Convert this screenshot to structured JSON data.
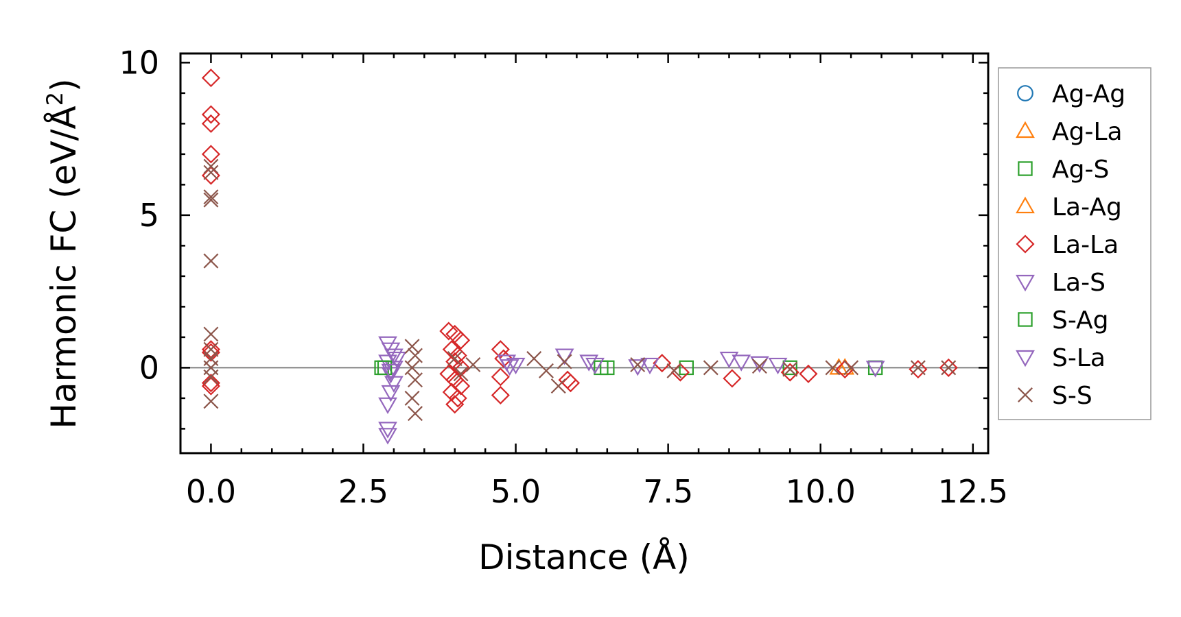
{
  "chart_data": {
    "type": "scatter",
    "xlabel": "Distance (Å)",
    "ylabel": "Harmonic FC (eV/Å²)",
    "ylabel_main": "Harmonic FC (eV/Å",
    "ylabel_sup": "2",
    "ylabel_close": ")",
    "xlim": [
      -0.5,
      12.75
    ],
    "ylim": [
      -2.8,
      10.3
    ],
    "xticks": [
      0.0,
      2.5,
      5.0,
      7.5,
      10.0,
      12.5
    ],
    "xtick_labels": [
      "0.0",
      "2.5",
      "5.0",
      "7.5",
      "10.0",
      "12.5"
    ],
    "yticks": [
      0,
      5,
      10
    ],
    "ytick_labels": [
      "0",
      "5",
      "10"
    ],
    "zero_line": true,
    "legend_position": "right, outside plot",
    "series": [
      {
        "name": "Ag-Ag",
        "marker": "circle",
        "color": "#1f77b4",
        "points": []
      },
      {
        "name": "Ag-La",
        "marker": "triangle-up",
        "color": "#ff7f0e",
        "points": [
          [
            10.3,
            0.0
          ]
        ]
      },
      {
        "name": "Ag-S",
        "marker": "square",
        "color": "#2ca02c",
        "points": [
          [
            2.8,
            0.0
          ],
          [
            6.5,
            0.0
          ],
          [
            7.8,
            0.0
          ],
          [
            9.5,
            0.0
          ],
          [
            10.9,
            0.0
          ]
        ]
      },
      {
        "name": "La-Ag",
        "marker": "triangle-up",
        "color": "#ff7f0e",
        "points": [
          [
            10.4,
            0.0
          ]
        ]
      },
      {
        "name": "La-La",
        "marker": "diamond",
        "color": "#d62728",
        "points": [
          [
            0.0,
            9.5
          ],
          [
            0.0,
            8.3
          ],
          [
            0.0,
            8.0
          ],
          [
            0.0,
            7.0
          ],
          [
            0.0,
            6.3
          ],
          [
            0.0,
            0.6
          ],
          [
            0.0,
            0.5
          ],
          [
            0.0,
            -0.5
          ],
          [
            0.0,
            -0.6
          ],
          [
            3.9,
            1.2
          ],
          [
            4.0,
            1.1
          ],
          [
            4.1,
            0.9
          ],
          [
            3.95,
            0.6
          ],
          [
            4.05,
            0.4
          ],
          [
            4.0,
            0.2
          ],
          [
            4.1,
            0.0
          ],
          [
            3.9,
            -0.2
          ],
          [
            4.0,
            -0.4
          ],
          [
            4.1,
            -0.6
          ],
          [
            3.95,
            -0.8
          ],
          [
            4.05,
            -1.0
          ],
          [
            4.0,
            -1.2
          ],
          [
            4.75,
            0.6
          ],
          [
            4.8,
            0.3
          ],
          [
            4.75,
            -0.3
          ],
          [
            4.75,
            -0.9
          ],
          [
            5.85,
            -0.4
          ],
          [
            5.9,
            -0.5
          ],
          [
            7.4,
            0.15
          ],
          [
            7.7,
            -0.15
          ],
          [
            8.55,
            -0.35
          ],
          [
            9.5,
            -0.15
          ],
          [
            9.8,
            -0.2
          ],
          [
            10.4,
            -0.05
          ],
          [
            11.6,
            -0.05
          ],
          [
            12.1,
            0.0
          ]
        ]
      },
      {
        "name": "La-S",
        "marker": "triangle-down",
        "color": "#9467bd",
        "points": [
          [
            2.9,
            0.8
          ],
          [
            2.95,
            0.6
          ],
          [
            3.0,
            0.4
          ],
          [
            2.9,
            0.2
          ],
          [
            3.0,
            0.0
          ],
          [
            2.95,
            -0.2
          ],
          [
            3.0,
            -0.5
          ],
          [
            2.95,
            -0.8
          ],
          [
            2.9,
            -1.2
          ],
          [
            2.9,
            -2.0
          ],
          [
            2.9,
            -2.2
          ],
          [
            4.85,
            0.2
          ],
          [
            5.0,
            0.1
          ],
          [
            5.8,
            0.4
          ],
          [
            6.2,
            0.2
          ],
          [
            7.2,
            0.1
          ],
          [
            8.5,
            0.3
          ],
          [
            9.0,
            0.15
          ],
          [
            10.9,
            0.0
          ]
        ]
      },
      {
        "name": "S-Ag",
        "marker": "square",
        "color": "#2ca02c",
        "points": [
          [
            2.85,
            0.0
          ],
          [
            6.4,
            0.0
          ]
        ]
      },
      {
        "name": "S-La",
        "marker": "triangle-down",
        "color": "#9467bd",
        "points": [
          [
            3.05,
            0.3
          ],
          [
            2.95,
            -0.1
          ],
          [
            4.9,
            0.05
          ],
          [
            6.3,
            0.1
          ],
          [
            7.0,
            0.05
          ],
          [
            8.7,
            0.2
          ],
          [
            9.3,
            0.1
          ]
        ]
      },
      {
        "name": "S-S",
        "marker": "x",
        "color": "#8c564b",
        "points": [
          [
            0.0,
            6.6
          ],
          [
            0.0,
            6.4
          ],
          [
            0.0,
            5.6
          ],
          [
            0.0,
            5.5
          ],
          [
            0.0,
            3.5
          ],
          [
            0.0,
            1.1
          ],
          [
            0.0,
            0.6
          ],
          [
            0.0,
            0.3
          ],
          [
            0.0,
            0.0
          ],
          [
            0.0,
            -0.3
          ],
          [
            0.0,
            -1.1
          ],
          [
            3.3,
            0.7
          ],
          [
            3.35,
            0.4
          ],
          [
            3.3,
            0.0
          ],
          [
            3.35,
            -0.4
          ],
          [
            3.3,
            -1.0
          ],
          [
            3.35,
            -1.5
          ],
          [
            4.0,
            0.3
          ],
          [
            4.1,
            -0.2
          ],
          [
            4.3,
            0.1
          ],
          [
            5.3,
            0.3
          ],
          [
            5.5,
            -0.1
          ],
          [
            5.7,
            -0.6
          ],
          [
            5.8,
            0.2
          ],
          [
            7.0,
            0.1
          ],
          [
            7.6,
            -0.1
          ],
          [
            8.2,
            0.0
          ],
          [
            9.0,
            0.05
          ],
          [
            9.5,
            -0.05
          ],
          [
            10.2,
            0.0
          ],
          [
            10.5,
            0.0
          ],
          [
            11.6,
            0.0
          ],
          [
            12.1,
            0.0
          ]
        ]
      }
    ]
  }
}
